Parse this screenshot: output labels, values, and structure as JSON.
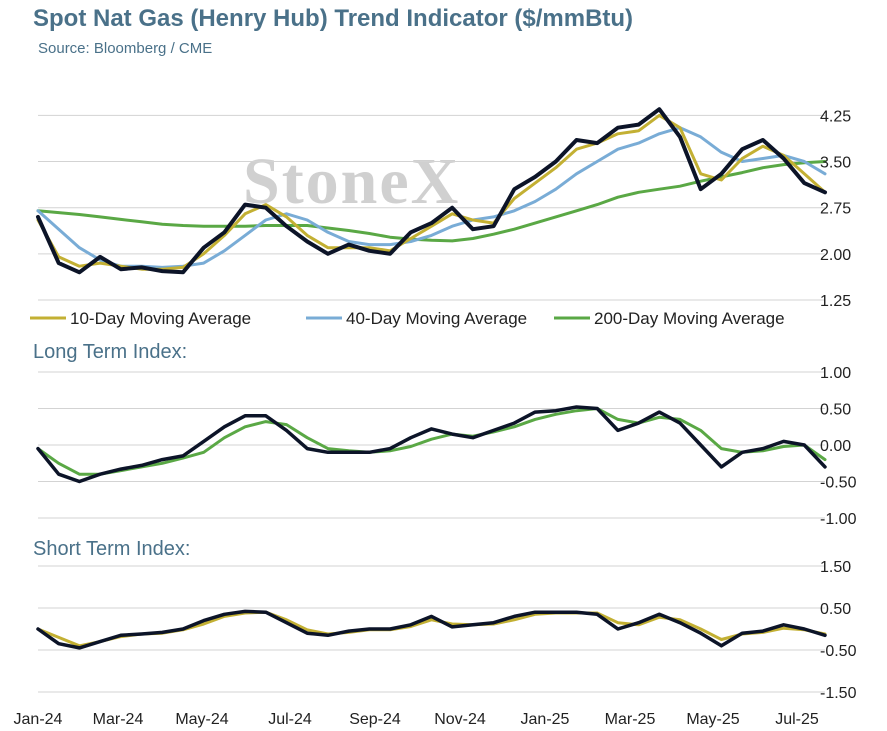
{
  "page": {
    "title": "Spot Nat Gas (Henry Hub) Trend Indicator ($/mmBtu)",
    "source": "Source: Bloomberg / CME",
    "watermark": "StoneX"
  },
  "colors": {
    "price": "#0c1428",
    "ma10": "#c3b033",
    "ma40": "#79acd6",
    "ma200": "#5aa845",
    "grid": "#d3d3d3",
    "title": "#4a7189"
  },
  "chart_data": [
    {
      "id": "price",
      "type": "line",
      "title": "",
      "x_labels": [
        "Jan-24",
        "Mar-24",
        "May-24",
        "Jul-24",
        "Sep-24",
        "Nov-24",
        "Jan-25",
        "Mar-25",
        "May-25",
        "Jul-25"
      ],
      "ylim": [
        1.25,
        4.5
      ],
      "y_ticks": [
        "4.25",
        "3.50",
        "2.75",
        "2.00",
        "1.25"
      ],
      "y_tick_values": [
        4.25,
        3.5,
        2.75,
        2.0,
        1.25
      ],
      "grid": true,
      "legend": {
        "placement": "bottom",
        "entries": [
          {
            "label": "10-Day Moving Average",
            "series": "ma10"
          },
          {
            "label": "40-Day Moving Average",
            "series": "ma40"
          },
          {
            "label": "200-Day Moving Average",
            "series": "ma200"
          }
        ]
      },
      "x": [
        0,
        0.5,
        1,
        1.5,
        2,
        2.5,
        3,
        3.5,
        4,
        4.5,
        5,
        5.5,
        6,
        6.5,
        7,
        7.5,
        8,
        8.5,
        9,
        9.5,
        10,
        10.5,
        11,
        11.5,
        12,
        12.5,
        13,
        13.5,
        14,
        14.5,
        15,
        15.5,
        16,
        16.5,
        17,
        17.5,
        18,
        18.5,
        19
      ],
      "series": [
        {
          "key": "price",
          "values": [
            2.6,
            1.85,
            1.7,
            1.95,
            1.75,
            1.78,
            1.72,
            1.7,
            2.1,
            2.35,
            2.8,
            2.75,
            2.45,
            2.2,
            2.0,
            2.15,
            2.05,
            2.0,
            2.35,
            2.5,
            2.75,
            2.4,
            2.45,
            3.05,
            3.25,
            3.5,
            3.85,
            3.8,
            4.05,
            4.1,
            4.35,
            3.9,
            3.05,
            3.3,
            3.7,
            3.85,
            3.55,
            3.15,
            3.0
          ]
        },
        {
          "key": "ma10",
          "values": [
            2.55,
            1.95,
            1.8,
            1.85,
            1.8,
            1.75,
            1.75,
            1.78,
            2.0,
            2.3,
            2.65,
            2.8,
            2.6,
            2.3,
            2.1,
            2.1,
            2.1,
            2.05,
            2.25,
            2.45,
            2.65,
            2.55,
            2.5,
            2.9,
            3.15,
            3.4,
            3.7,
            3.8,
            3.95,
            4.0,
            4.25,
            4.05,
            3.3,
            3.2,
            3.55,
            3.75,
            3.6,
            3.3,
            3.0
          ]
        },
        {
          "key": "ma40",
          "values": [
            2.7,
            2.4,
            2.1,
            1.9,
            1.8,
            1.8,
            1.78,
            1.8,
            1.85,
            2.05,
            2.3,
            2.55,
            2.65,
            2.55,
            2.35,
            2.2,
            2.15,
            2.15,
            2.2,
            2.3,
            2.45,
            2.55,
            2.6,
            2.7,
            2.85,
            3.05,
            3.3,
            3.5,
            3.7,
            3.8,
            3.95,
            4.05,
            3.9,
            3.65,
            3.5,
            3.55,
            3.6,
            3.5,
            3.3
          ]
        },
        {
          "key": "ma200",
          "values": [
            2.7,
            2.67,
            2.64,
            2.6,
            2.56,
            2.52,
            2.48,
            2.46,
            2.45,
            2.45,
            2.45,
            2.46,
            2.46,
            2.46,
            2.42,
            2.38,
            2.33,
            2.27,
            2.24,
            2.22,
            2.21,
            2.25,
            2.32,
            2.4,
            2.5,
            2.6,
            2.7,
            2.8,
            2.92,
            3.0,
            3.05,
            3.1,
            3.18,
            3.25,
            3.32,
            3.4,
            3.45,
            3.48,
            3.5
          ]
        }
      ]
    },
    {
      "id": "long",
      "type": "line",
      "title": "Long Term Index:",
      "ylim": [
        -1.0,
        1.0
      ],
      "y_ticks": [
        "1.00",
        "0.50",
        "0.00",
        "-0.50",
        "-1.00"
      ],
      "y_tick_values": [
        1.0,
        0.5,
        0.0,
        -0.5,
        -1.0
      ],
      "grid": true,
      "x": [
        0,
        0.5,
        1,
        1.5,
        2,
        2.5,
        3,
        3.5,
        4,
        4.5,
        5,
        5.5,
        6,
        6.5,
        7,
        7.5,
        8,
        8.5,
        9,
        9.5,
        10,
        10.5,
        11,
        11.5,
        12,
        12.5,
        13,
        13.5,
        14,
        14.5,
        15,
        15.5,
        16,
        16.5,
        17,
        17.5,
        18,
        18.5,
        19
      ],
      "series": [
        {
          "key": "index",
          "values": [
            -0.05,
            -0.4,
            -0.5,
            -0.4,
            -0.33,
            -0.28,
            -0.2,
            -0.15,
            0.05,
            0.25,
            0.4,
            0.4,
            0.2,
            -0.05,
            -0.1,
            -0.1,
            -0.1,
            -0.05,
            0.1,
            0.22,
            0.15,
            0.1,
            0.2,
            0.3,
            0.45,
            0.47,
            0.52,
            0.5,
            0.2,
            0.3,
            0.45,
            0.3,
            0.0,
            -0.3,
            -0.1,
            -0.05,
            0.05,
            0.0,
            -0.3
          ]
        },
        {
          "key": "signal",
          "values": [
            -0.05,
            -0.25,
            -0.4,
            -0.4,
            -0.35,
            -0.3,
            -0.25,
            -0.18,
            -0.1,
            0.1,
            0.25,
            0.32,
            0.28,
            0.1,
            -0.05,
            -0.08,
            -0.1,
            -0.08,
            -0.02,
            0.08,
            0.15,
            0.12,
            0.18,
            0.25,
            0.35,
            0.42,
            0.47,
            0.5,
            0.35,
            0.3,
            0.38,
            0.35,
            0.2,
            -0.05,
            -0.1,
            -0.08,
            -0.02,
            0.0,
            -0.2
          ]
        }
      ]
    },
    {
      "id": "short",
      "type": "line",
      "title": "Short Term Index:",
      "ylim": [
        -1.5,
        1.5
      ],
      "y_ticks": [
        "1.50",
        "0.50",
        "-0.50",
        "-1.50"
      ],
      "y_tick_values": [
        1.5,
        0.5,
        -0.5,
        -1.5
      ],
      "grid": true,
      "x": [
        0,
        0.5,
        1,
        1.5,
        2,
        2.5,
        3,
        3.5,
        4,
        4.5,
        5,
        5.5,
        6,
        6.5,
        7,
        7.5,
        8,
        8.5,
        9,
        9.5,
        10,
        10.5,
        11,
        11.5,
        12,
        12.5,
        13,
        13.5,
        14,
        14.5,
        15,
        15.5,
        16,
        16.5,
        17,
        17.5,
        18,
        18.5,
        19
      ],
      "series": [
        {
          "key": "index",
          "values": [
            0.0,
            -0.35,
            -0.45,
            -0.3,
            -0.15,
            -0.12,
            -0.08,
            0.0,
            0.2,
            0.35,
            0.42,
            0.4,
            0.15,
            -0.1,
            -0.15,
            -0.05,
            0.0,
            0.0,
            0.1,
            0.3,
            0.05,
            0.1,
            0.15,
            0.3,
            0.4,
            0.4,
            0.4,
            0.35,
            0.0,
            0.15,
            0.35,
            0.15,
            -0.1,
            -0.4,
            -0.1,
            -0.05,
            0.1,
            0.0,
            -0.15
          ]
        },
        {
          "key": "signal",
          "values": [
            0.0,
            -0.2,
            -0.4,
            -0.3,
            -0.18,
            -0.12,
            -0.1,
            -0.02,
            0.12,
            0.3,
            0.38,
            0.4,
            0.22,
            -0.02,
            -0.12,
            -0.08,
            -0.02,
            -0.02,
            0.06,
            0.22,
            0.12,
            0.1,
            0.12,
            0.22,
            0.35,
            0.38,
            0.38,
            0.38,
            0.15,
            0.1,
            0.28,
            0.22,
            0.0,
            -0.25,
            -0.12,
            -0.08,
            0.02,
            -0.02,
            -0.12
          ]
        }
      ]
    }
  ]
}
